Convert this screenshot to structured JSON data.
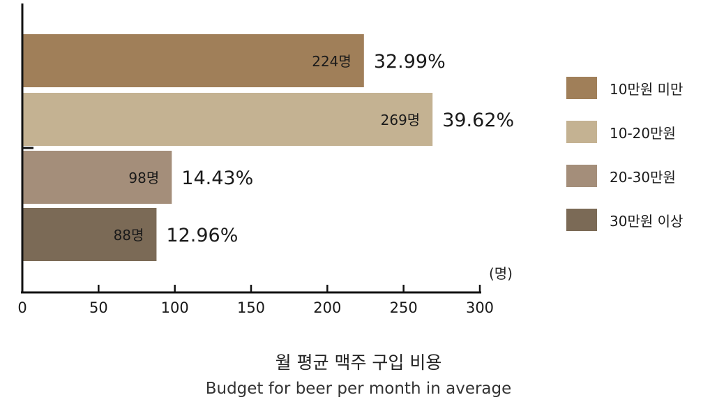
{
  "chart_data": {
    "type": "bar",
    "orientation": "horizontal",
    "categories": [
      "10만원 미만",
      "10-20만원",
      "20-30만원",
      "30만원 이상"
    ],
    "values": [
      224,
      269,
      98,
      88
    ],
    "value_labels": [
      "224명",
      "269명",
      "98명",
      "88명"
    ],
    "percent_labels": [
      "32.99%",
      "39.62%",
      "14.43%",
      "12.96%"
    ],
    "colors": [
      "#a07f59",
      "#c4b292",
      "#a48e7a",
      "#7b6a56"
    ],
    "xlim": [
      0,
      300
    ],
    "xticks": [
      0,
      50,
      100,
      150,
      200,
      250,
      300
    ],
    "xticklabels": [
      "0",
      "50",
      "100",
      "150",
      "200",
      "250",
      "300"
    ],
    "xunit": "(명)",
    "legend_placement": "right",
    "grid": false
  },
  "caption": {
    "korean": "월 평균 맥주 구입 비용",
    "english": "Budget for beer per month in average"
  }
}
